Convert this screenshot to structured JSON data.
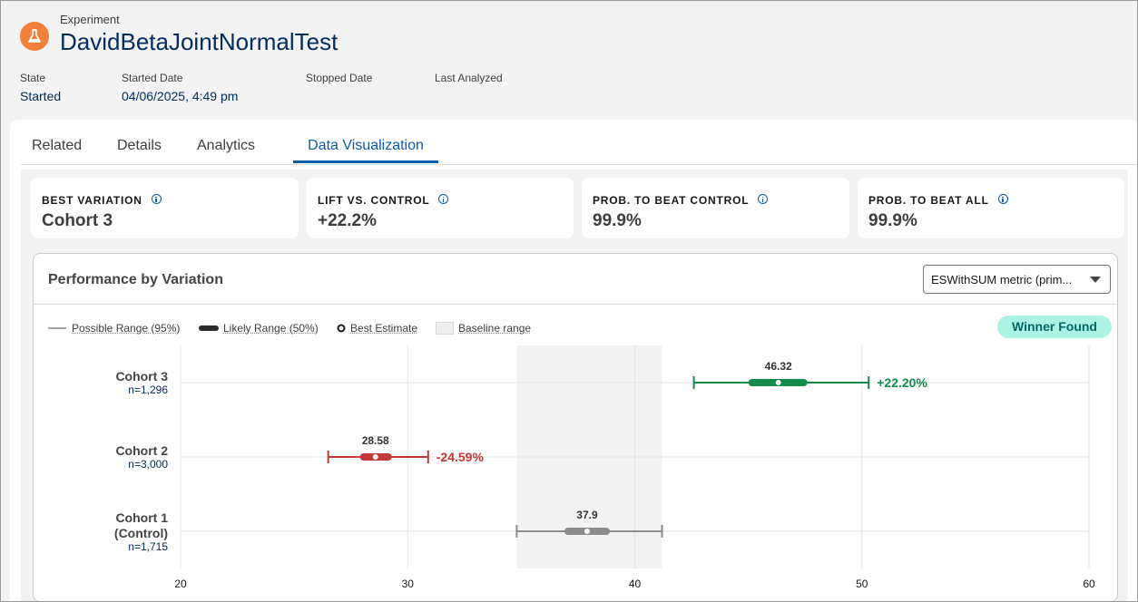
{
  "header": {
    "object_type": "Experiment",
    "title": "DavidBetaJointNormalTest",
    "icon": "flask-icon",
    "icon_color": "#f0803a",
    "fields": [
      {
        "label": "State",
        "value": "Started"
      },
      {
        "label": "Started Date",
        "value": "04/06/2025, 4:49 pm"
      },
      {
        "label": "Stopped Date",
        "value": ""
      },
      {
        "label": "Last Analyzed",
        "value": ""
      }
    ]
  },
  "tabs": [
    {
      "label": "Related",
      "active": false
    },
    {
      "label": "Details",
      "active": false
    },
    {
      "label": "Analytics",
      "active": false
    },
    {
      "label": "Data Visualization",
      "active": true
    }
  ],
  "stats": [
    {
      "label": "BEST VARIATION",
      "value": "Cohort 3"
    },
    {
      "label": "LIFT VS. CONTROL",
      "value": "+22.2%"
    },
    {
      "label": "PROB. TO BEAT CONTROL",
      "value": "99.9%"
    },
    {
      "label": "PROB. TO BEAT ALL",
      "value": "99.9%"
    }
  ],
  "performance": {
    "title": "Performance by Variation",
    "metric_select": "ESWithSUM metric (prim...",
    "legend": {
      "possible": "Possible Range (95%)",
      "likely": "Likely Range (50%)",
      "best": "Best Estimate",
      "baseline": "Baseline range"
    },
    "status_badge": "Winner Found"
  },
  "chart_data": {
    "type": "interval",
    "x_ticks": [
      20,
      30,
      40,
      50,
      60
    ],
    "xlim": [
      20,
      60
    ],
    "grid": true,
    "baseline_range": [
      34.8,
      41.2
    ],
    "colors": {
      "winner": "#138a47",
      "loser": "#c23934",
      "control": "#8c8c8c"
    },
    "rows": [
      {
        "name": "Cohort 3",
        "n": "n=1,296",
        "estimate": 46.32,
        "estimate_label": "46.32",
        "ci95": [
          42.6,
          50.3
        ],
        "ci50": [
          45.0,
          47.6
        ],
        "lift": "+22.20%",
        "status": "winner"
      },
      {
        "name": "Cohort 2",
        "n": "n=3,000",
        "estimate": 28.58,
        "estimate_label": "28.58",
        "ci95": [
          26.5,
          30.9
        ],
        "ci50": [
          27.9,
          29.3
        ],
        "lift": "-24.59%",
        "status": "loser"
      },
      {
        "name": "Cohort 1 (Control)",
        "name_lines": [
          "Cohort 1",
          "(Control)"
        ],
        "n": "n=1,715",
        "estimate": 37.9,
        "estimate_label": "37.9",
        "ci95": [
          34.8,
          41.2
        ],
        "ci50": [
          36.9,
          38.9
        ],
        "lift": "",
        "status": "control"
      }
    ]
  }
}
